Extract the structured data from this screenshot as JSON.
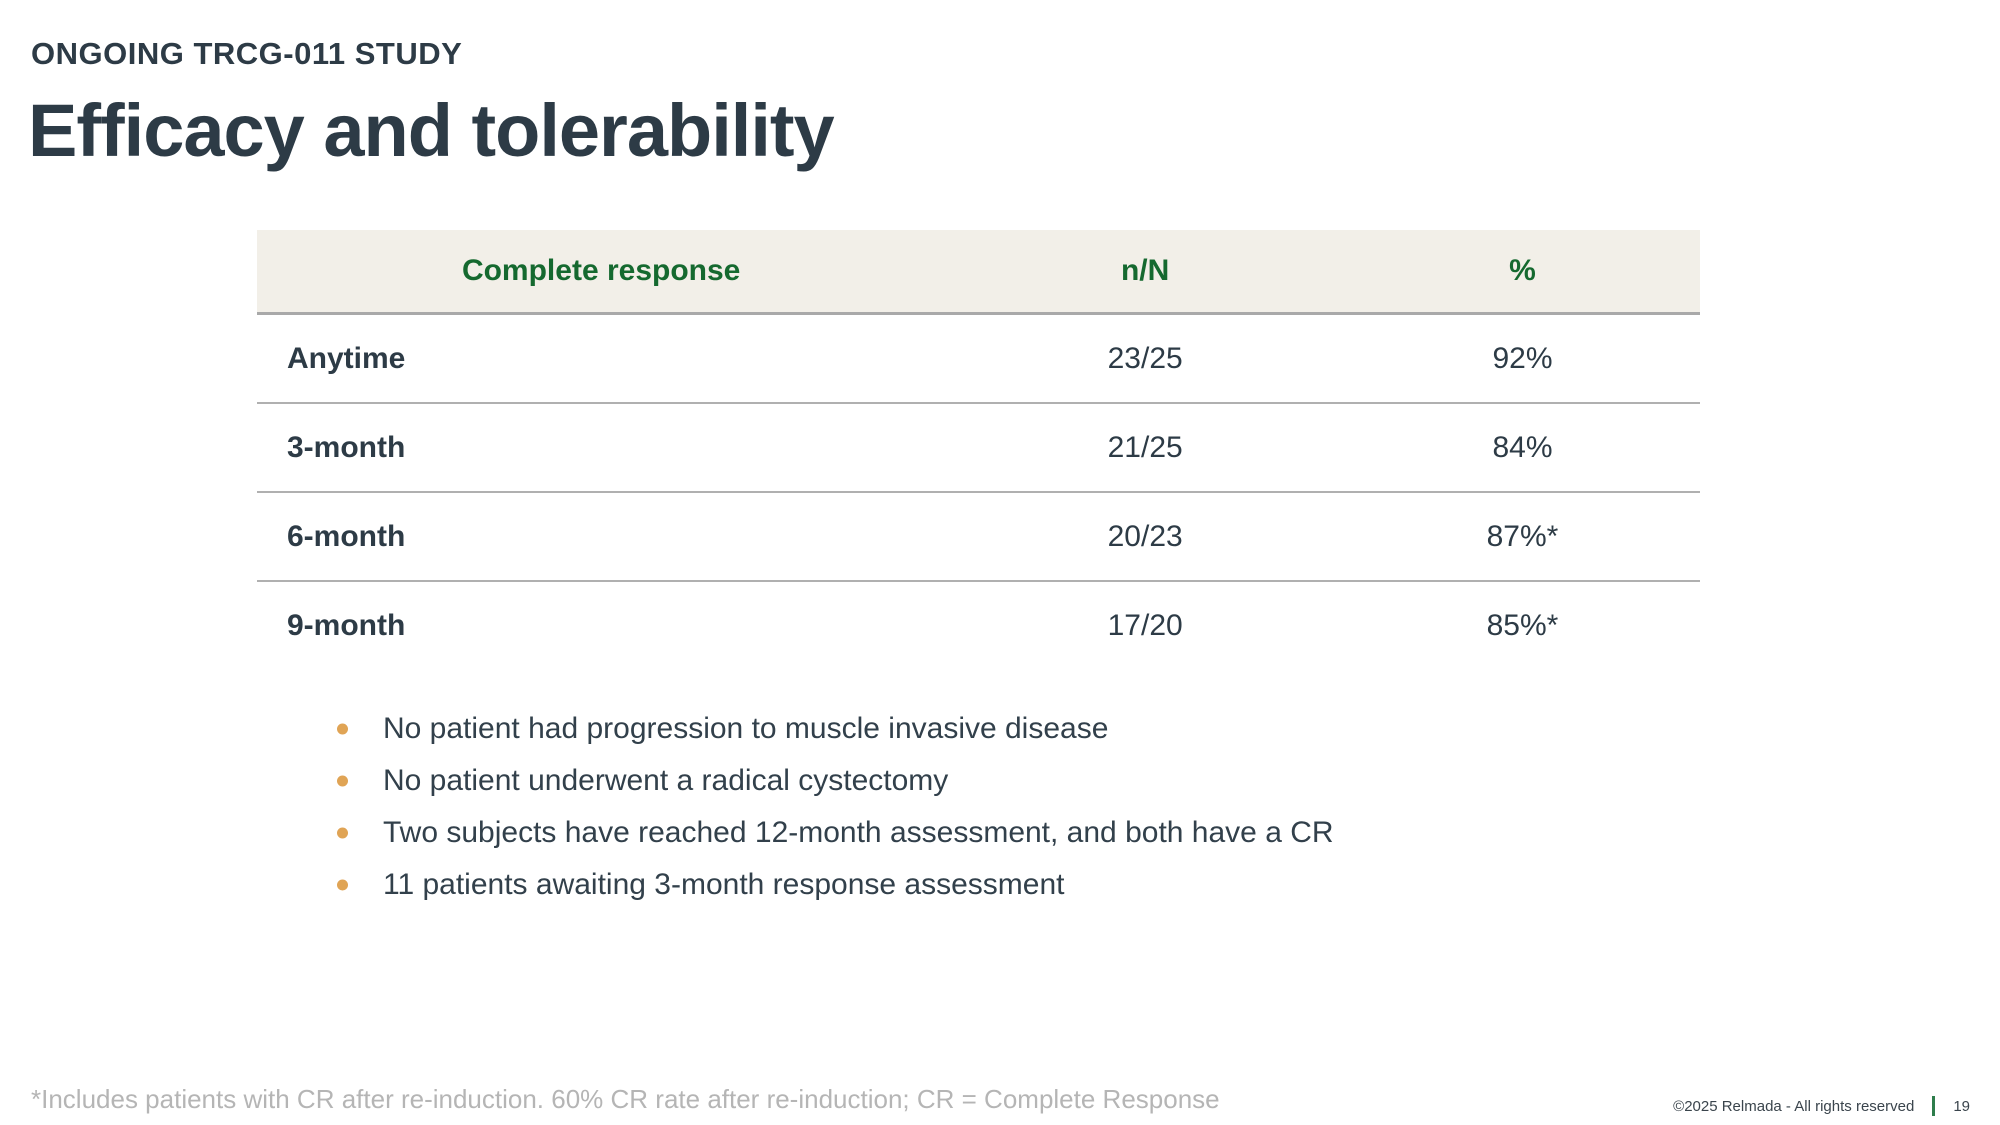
{
  "slide": {
    "kicker": "ONGOING TRCG-011 STUDY",
    "title": "Efficacy and tolerability"
  },
  "table": {
    "headers": [
      "Complete response",
      "n/N",
      "%"
    ],
    "rows": [
      {
        "label": "Anytime",
        "n_over_N": "23/25",
        "percent": "92%"
      },
      {
        "label": "3-month",
        "n_over_N": "21/25",
        "percent": "84%"
      },
      {
        "label": "6-month",
        "n_over_N": "20/23",
        "percent": "87%*"
      },
      {
        "label": "9-month",
        "n_over_N": "17/20",
        "percent": "85%*"
      }
    ]
  },
  "bullets": [
    "No patient had progression to muscle invasive disease",
    "No patient underwent a radical cystectomy",
    "Two subjects have reached 12-month assessment, and both have a CR",
    "11 patients awaiting 3-month response assessment"
  ],
  "footnote": "*Includes patients with CR after re-induction. 60% CR rate after re-induction; CR = Complete Response",
  "footer": {
    "copyright": "©2025 Relmada - All rights reserved",
    "page_number": "19"
  },
  "colors": {
    "text_dark": "#2d3b46",
    "heading_green": "#15692f",
    "table_header_bg": "#f2efe8",
    "row_divider": "#b0b0b0",
    "bullet_dot": "#e0a455",
    "footnote_gray": "#b5b5b5",
    "page_bar_green": "#2e7d4c"
  }
}
